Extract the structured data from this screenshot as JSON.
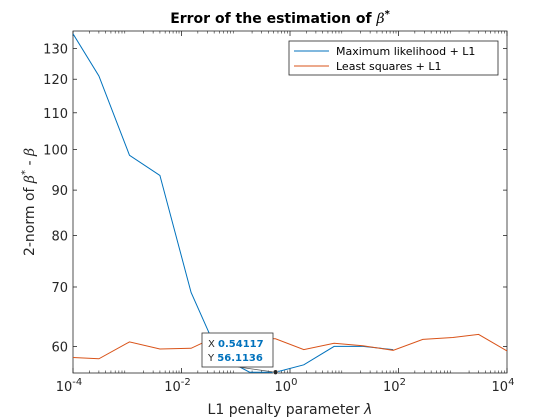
{
  "chart_data": {
    "type": "line",
    "title": "Error of the estimation of β*",
    "xlabel": "L1 penalty parameter λ",
    "ylabel": "2-norm of β* - β",
    "xscale": "log",
    "yscale": "log",
    "xlim": [
      0.0001,
      10000
    ],
    "ylim": [
      56,
      136
    ],
    "xticks": [
      0.0001,
      0.01,
      1,
      100,
      10000
    ],
    "xtick_labels": [
      {
        "base": "10",
        "exp": "-4"
      },
      {
        "base": "10",
        "exp": "-2"
      },
      {
        "base": "10",
        "exp": "0"
      },
      {
        "base": "10",
        "exp": "2"
      },
      {
        "base": "10",
        "exp": "4"
      }
    ],
    "yticks": [
      60,
      70,
      80,
      90,
      100,
      110,
      120,
      130
    ],
    "ytick_labels": [
      "60",
      "70",
      "80",
      "90",
      "100",
      "110",
      "120",
      "130"
    ],
    "grid": false,
    "legend_position": "top-right",
    "series": [
      {
        "name": "Maximum likelihood + L1",
        "color": "#0072BD",
        "x": [
          0.0001,
          0.0003,
          0.0011,
          0.004,
          0.015,
          0.05,
          0.18,
          0.54117,
          1.8,
          6.5,
          22,
          80
        ],
        "y": [
          135,
          121,
          98.5,
          93.5,
          69,
          58.5,
          56.1136,
          56.1136,
          57.2,
          60,
          60,
          59.5
        ]
      },
      {
        "name": "Least squares + L1",
        "color": "#D95319",
        "x": [
          0.0001,
          0.0003,
          0.0011,
          0.004,
          0.015,
          0.05,
          0.18,
          0.54117,
          1.8,
          6.5,
          22,
          80,
          280,
          1000,
          3000,
          10000
        ],
        "y": [
          58.3,
          58.1,
          60.7,
          59.6,
          59.7,
          61.8,
          61.3,
          61.2,
          59.5,
          60.5,
          60.1,
          59.4,
          61.1,
          61.4,
          61.9,
          59.3
        ]
      }
    ],
    "datatip": {
      "x_label": "X",
      "x_value": "0.54117",
      "y_label": "Y",
      "y_value": "56.1136",
      "x": 0.54117,
      "y": 56.1136
    }
  }
}
